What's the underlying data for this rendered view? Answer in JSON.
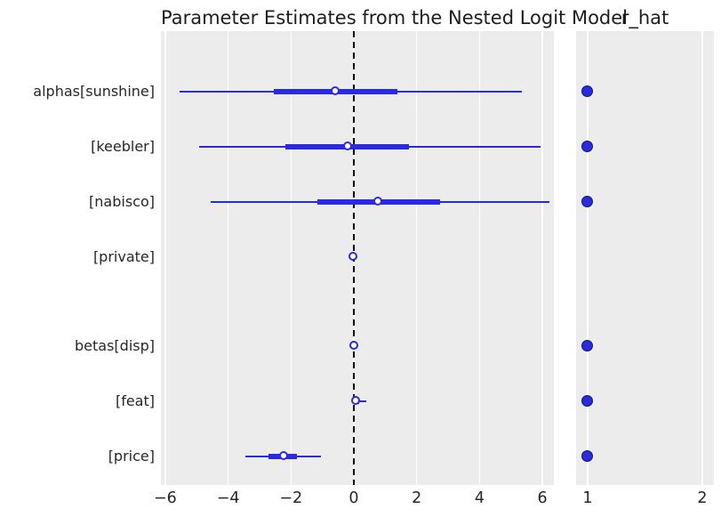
{
  "figure": {
    "title": "Parameter Estimates from the Nested Logit Model",
    "rhat_panel_title": "r_hat"
  },
  "colors": {
    "line_blue": "#2a2ae0",
    "rhat_dot_edge": "#16165e",
    "panel_background": "#ececec",
    "gridline": "#ffffff",
    "text": "#262626",
    "reference_line": "#000000"
  },
  "chart_data": {
    "type": "forest",
    "title": "Parameter Estimates from the Nested Logit Model",
    "rhat_panel_title": "r_hat",
    "reference_line_x": 0,
    "legend_position": "none",
    "grid": "vertical-white-on-gray",
    "rows": [
      {
        "label": "alphas[sunshine]",
        "ci": [
          -5.55,
          5.34
        ],
        "iqr": [
          -2.54,
          1.38
        ],
        "median": -0.59,
        "r_hat": 1.0
      },
      {
        "label": "[keebler]",
        "ci": [
          -4.92,
          5.95
        ],
        "iqr": [
          -2.19,
          1.75
        ],
        "median": -0.18,
        "r_hat": 1.0
      },
      {
        "label": "[nabisco]",
        "ci": [
          -4.55,
          6.23
        ],
        "iqr": [
          -1.17,
          2.74
        ],
        "median": 0.78,
        "r_hat": 1.0
      },
      {
        "label": "[private]",
        "ci": [
          -0.05,
          0.07
        ],
        "iqr": [
          -0.02,
          0.03
        ],
        "median": 0.0,
        "r_hat": null
      },
      {
        "label": "betas[disp]",
        "ci": [
          -0.04,
          0.1
        ],
        "iqr": [
          -0.01,
          0.05
        ],
        "median": 0.02,
        "r_hat": 1.0
      },
      {
        "label": "[feat]",
        "ci": [
          0.0,
          0.4
        ],
        "iqr": [
          0.03,
          0.16
        ],
        "median": 0.07,
        "r_hat": 1.0
      },
      {
        "label": "[price]",
        "ci": [
          -3.46,
          -1.05
        ],
        "iqr": [
          -2.72,
          -1.81
        ],
        "median": -2.23,
        "r_hat": 1.0
      }
    ],
    "xaxis_left": {
      "lim": [
        -6.14,
        6.36
      ],
      "ticks": [
        {
          "label": "−6",
          "value": -6
        },
        {
          "label": "−4",
          "value": -4
        },
        {
          "label": "−2",
          "value": -2
        },
        {
          "label": "0",
          "value": 0
        },
        {
          "label": "2",
          "value": 2
        },
        {
          "label": "4",
          "value": 4
        },
        {
          "label": "6",
          "value": 6
        }
      ]
    },
    "xaxis_right": {
      "lim": [
        0.9,
        2.1
      ],
      "ticks": [
        {
          "label": "1",
          "value": 1
        },
        {
          "label": "2",
          "value": 2
        }
      ]
    }
  }
}
